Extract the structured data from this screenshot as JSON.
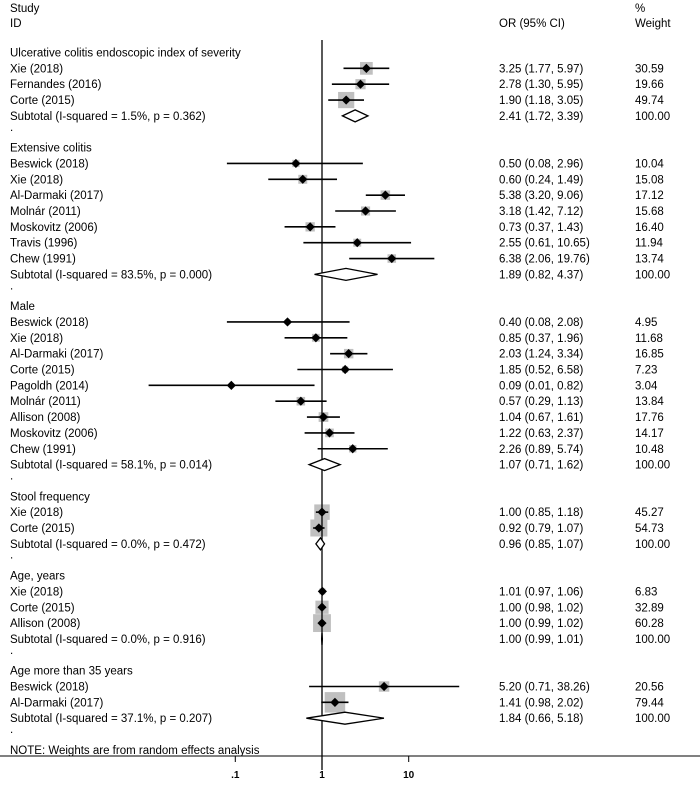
{
  "chart_data": {
    "type": "forest",
    "header": {
      "study": "Study",
      "id": "ID",
      "or": "OR (95% CI)",
      "weight_pct": "%",
      "weight": "Weight"
    },
    "x_scale": "log",
    "xlim": [
      0.005,
      100
    ],
    "x_ticks": [
      {
        "value": 0.1,
        "label": ".1"
      },
      {
        "value": 1,
        "label": "1"
      },
      {
        "value": 10,
        "label": "10"
      }
    ],
    "reference_line": 1,
    "rows": [
      {
        "kind": "group",
        "label": "Ulcerative colitis endoscopic index of severity"
      },
      {
        "kind": "study",
        "label": "Xie (2018)",
        "or": 3.25,
        "lo": 1.77,
        "hi": 5.97,
        "ci_text": "3.25 (1.77, 5.97)",
        "weight": 30.59,
        "weight_text": "30.59"
      },
      {
        "kind": "study",
        "label": "Fernandes (2016)",
        "or": 2.78,
        "lo": 1.3,
        "hi": 5.95,
        "ci_text": "2.78 (1.30, 5.95)",
        "weight": 19.66,
        "weight_text": "19.66"
      },
      {
        "kind": "study",
        "label": "Corte (2015)",
        "or": 1.9,
        "lo": 1.18,
        "hi": 3.05,
        "ci_text": "1.90 (1.18, 3.05)",
        "weight": 49.74,
        "weight_text": "49.74"
      },
      {
        "kind": "subtotal",
        "label": "Subtotal  (I-squared = 1.5%, p = 0.362)",
        "or": 2.41,
        "lo": 1.72,
        "hi": 3.39,
        "ci_text": "2.41 (1.72, 3.39)",
        "weight_text": "100.00"
      },
      {
        "kind": "sep",
        "label": "."
      },
      {
        "kind": "group",
        "label": "Extensive colitis"
      },
      {
        "kind": "study",
        "label": "Beswick (2018)",
        "or": 0.5,
        "lo": 0.08,
        "hi": 2.96,
        "ci_text": "0.50 (0.08, 2.96)",
        "weight": 10.04,
        "weight_text": "10.04"
      },
      {
        "kind": "study",
        "label": "Xie (2018)",
        "or": 0.6,
        "lo": 0.24,
        "hi": 1.49,
        "ci_text": "0.60 (0.24, 1.49)",
        "weight": 15.08,
        "weight_text": "15.08"
      },
      {
        "kind": "study",
        "label": "Al-Darmaki (2017)",
        "or": 5.38,
        "lo": 3.2,
        "hi": 9.06,
        "ci_text": "5.38 (3.20, 9.06)",
        "weight": 17.12,
        "weight_text": "17.12"
      },
      {
        "kind": "study",
        "label": "Molnár (2011)",
        "or": 3.18,
        "lo": 1.42,
        "hi": 7.12,
        "ci_text": "3.18 (1.42, 7.12)",
        "weight": 15.68,
        "weight_text": "15.68"
      },
      {
        "kind": "study",
        "label": "Moskovitz (2006)",
        "or": 0.73,
        "lo": 0.37,
        "hi": 1.43,
        "ci_text": "0.73 (0.37, 1.43)",
        "weight": 16.4,
        "weight_text": "16.40"
      },
      {
        "kind": "study",
        "label": "Travis (1996)",
        "or": 2.55,
        "lo": 0.61,
        "hi": 10.65,
        "ci_text": "2.55 (0.61, 10.65)",
        "weight": 11.94,
        "weight_text": "11.94"
      },
      {
        "kind": "study",
        "label": "Chew (1991)",
        "or": 6.38,
        "lo": 2.06,
        "hi": 19.76,
        "ci_text": "6.38 (2.06, 19.76)",
        "weight": 13.74,
        "weight_text": "13.74"
      },
      {
        "kind": "subtotal",
        "label": "Subtotal  (I-squared = 83.5%, p = 0.000)",
        "or": 1.89,
        "lo": 0.82,
        "hi": 4.37,
        "ci_text": "1.89 (0.82, 4.37)",
        "weight_text": "100.00"
      },
      {
        "kind": "sep",
        "label": "."
      },
      {
        "kind": "group",
        "label": "Male"
      },
      {
        "kind": "study",
        "label": "Beswick (2018)",
        "or": 0.4,
        "lo": 0.08,
        "hi": 2.08,
        "ci_text": "0.40 (0.08, 2.08)",
        "weight": 4.95,
        "weight_text": "4.95"
      },
      {
        "kind": "study",
        "label": "Xie (2018)",
        "or": 0.85,
        "lo": 0.37,
        "hi": 1.96,
        "ci_text": "0.85 (0.37, 1.96)",
        "weight": 11.68,
        "weight_text": "11.68"
      },
      {
        "kind": "study",
        "label": "Al-Darmaki (2017)",
        "or": 2.03,
        "lo": 1.24,
        "hi": 3.34,
        "ci_text": "2.03 (1.24, 3.34)",
        "weight": 16.85,
        "weight_text": "16.85"
      },
      {
        "kind": "study",
        "label": "Corte (2015)",
        "or": 1.85,
        "lo": 0.52,
        "hi": 6.58,
        "ci_text": "1.85 (0.52, 6.58)",
        "weight": 7.23,
        "weight_text": "7.23"
      },
      {
        "kind": "study",
        "label": "Pagoldh (2014)",
        "or": 0.09,
        "lo": 0.01,
        "hi": 0.82,
        "ci_text": "0.09 (0.01, 0.82)",
        "weight": 3.04,
        "weight_text": "3.04"
      },
      {
        "kind": "study",
        "label": "Molnár (2011)",
        "or": 0.57,
        "lo": 0.29,
        "hi": 1.13,
        "ci_text": "0.57 (0.29, 1.13)",
        "weight": 13.84,
        "weight_text": "13.84"
      },
      {
        "kind": "study",
        "label": "Allison (2008)",
        "or": 1.04,
        "lo": 0.67,
        "hi": 1.61,
        "ci_text": "1.04 (0.67, 1.61)",
        "weight": 17.76,
        "weight_text": "17.76"
      },
      {
        "kind": "study",
        "label": "Moskovitz (2006)",
        "or": 1.22,
        "lo": 0.63,
        "hi": 2.37,
        "ci_text": "1.22 (0.63, 2.37)",
        "weight": 14.17,
        "weight_text": "14.17"
      },
      {
        "kind": "study",
        "label": "Chew (1991)",
        "or": 2.26,
        "lo": 0.89,
        "hi": 5.74,
        "ci_text": "2.26 (0.89, 5.74)",
        "weight": 10.48,
        "weight_text": "10.48"
      },
      {
        "kind": "subtotal",
        "label": "Subtotal  (I-squared = 58.1%, p = 0.014)",
        "or": 1.07,
        "lo": 0.71,
        "hi": 1.62,
        "ci_text": "1.07 (0.71, 1.62)",
        "weight_text": "100.00"
      },
      {
        "kind": "sep",
        "label": "."
      },
      {
        "kind": "group",
        "label": "Stool frequency"
      },
      {
        "kind": "study",
        "label": "Xie (2018)",
        "or": 1.0,
        "lo": 0.85,
        "hi": 1.18,
        "ci_text": "1.00 (0.85, 1.18)",
        "weight": 45.27,
        "weight_text": "45.27"
      },
      {
        "kind": "study",
        "label": "Corte (2015)",
        "or": 0.92,
        "lo": 0.79,
        "hi": 1.07,
        "ci_text": "0.92 (0.79, 1.07)",
        "weight": 54.73,
        "weight_text": "54.73"
      },
      {
        "kind": "subtotal",
        "label": "Subtotal  (I-squared = 0.0%, p = 0.472)",
        "or": 0.96,
        "lo": 0.85,
        "hi": 1.07,
        "ci_text": "0.96 (0.85, 1.07)",
        "weight_text": "100.00"
      },
      {
        "kind": "sep",
        "label": "."
      },
      {
        "kind": "group",
        "label": "Age, years"
      },
      {
        "kind": "study",
        "label": "Xie (2018)",
        "or": 1.01,
        "lo": 0.97,
        "hi": 1.06,
        "ci_text": "1.01 (0.97, 1.06)",
        "weight": 6.83,
        "weight_text": "6.83"
      },
      {
        "kind": "study",
        "label": "Corte (2015)",
        "or": 1.0,
        "lo": 0.98,
        "hi": 1.02,
        "ci_text": "1.00 (0.98, 1.02)",
        "weight": 32.89,
        "weight_text": "32.89"
      },
      {
        "kind": "study",
        "label": "Allison (2008)",
        "or": 1.0,
        "lo": 0.99,
        "hi": 1.02,
        "ci_text": "1.00 (0.99, 1.02)",
        "weight": 60.28,
        "weight_text": "60.28"
      },
      {
        "kind": "subtotal",
        "label": "Subtotal  (I-squared = 0.0%, p = 0.916)",
        "or": 1.0,
        "lo": 0.99,
        "hi": 1.01,
        "ci_text": "1.00 (0.99, 1.01)",
        "weight_text": "100.00"
      },
      {
        "kind": "sep",
        "label": "."
      },
      {
        "kind": "group",
        "label": "Age more than 35 years"
      },
      {
        "kind": "study",
        "label": "Beswick (2018)",
        "or": 5.2,
        "lo": 0.71,
        "hi": 38.26,
        "ci_text": "5.20 (0.71, 38.26)",
        "weight": 20.56,
        "weight_text": "20.56"
      },
      {
        "kind": "study",
        "label": "Al-Darmaki (2017)",
        "or": 1.41,
        "lo": 0.98,
        "hi": 2.02,
        "ci_text": "1.41 (0.98, 2.02)",
        "weight": 79.44,
        "weight_text": "79.44"
      },
      {
        "kind": "subtotal",
        "label": "Subtotal  (I-squared = 37.1%, p = 0.207)",
        "or": 1.84,
        "lo": 0.66,
        "hi": 5.18,
        "ci_text": "1.84 (0.66, 5.18)",
        "weight_text": "100.00"
      },
      {
        "kind": "sep",
        "label": "."
      },
      {
        "kind": "note",
        "label": "NOTE: Weights are from random effects analysis"
      }
    ]
  }
}
